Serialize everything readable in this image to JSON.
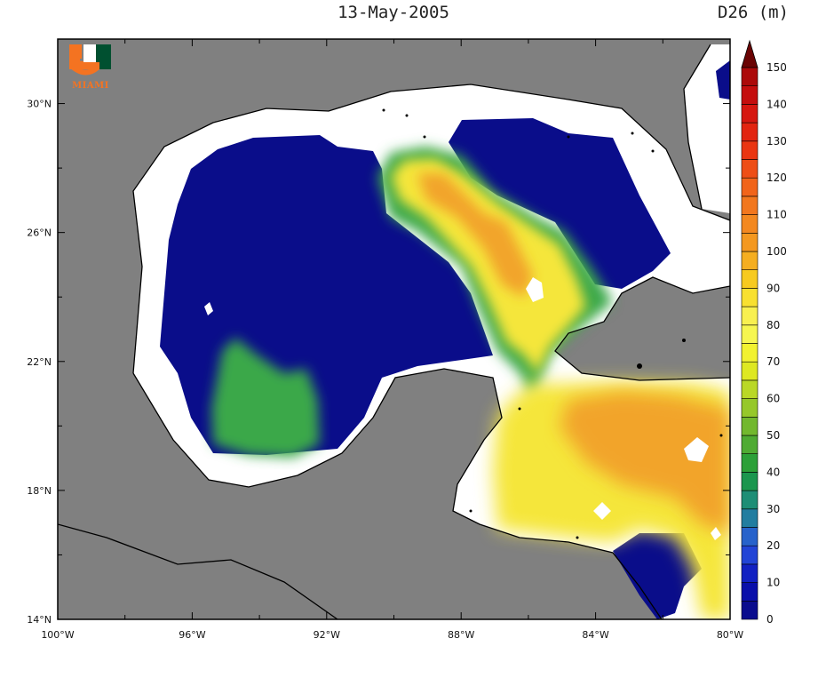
{
  "map": {
    "title": "13-May-2005",
    "units_label": "D26 (m)",
    "logo_text": "MIAMI",
    "lon_labels": [
      "100°W",
      "96°W",
      "92°W",
      "88°W",
      "84°W",
      "80°W"
    ],
    "lat_labels": [
      "30°N",
      "26°N",
      "22°N",
      "18°N",
      "14°N"
    ],
    "lon_range": [
      -100,
      -80
    ],
    "lat_range": [
      14,
      32
    ],
    "land_color": "#808080",
    "coast_band_color": "#ffffff",
    "colors": {
      "deep_blue": "#0a0d8a",
      "green": "#3aa84a",
      "yellow": "#f5e63a",
      "orange": "#f2a42a"
    }
  },
  "colorbar": {
    "labels": [
      "150",
      "140",
      "130",
      "120",
      "110",
      "100",
      "90",
      "80",
      "70",
      "60",
      "50",
      "40",
      "30",
      "20",
      "10",
      "0"
    ],
    "min": 0,
    "max": 150,
    "step": 5,
    "extend": "max"
  }
}
